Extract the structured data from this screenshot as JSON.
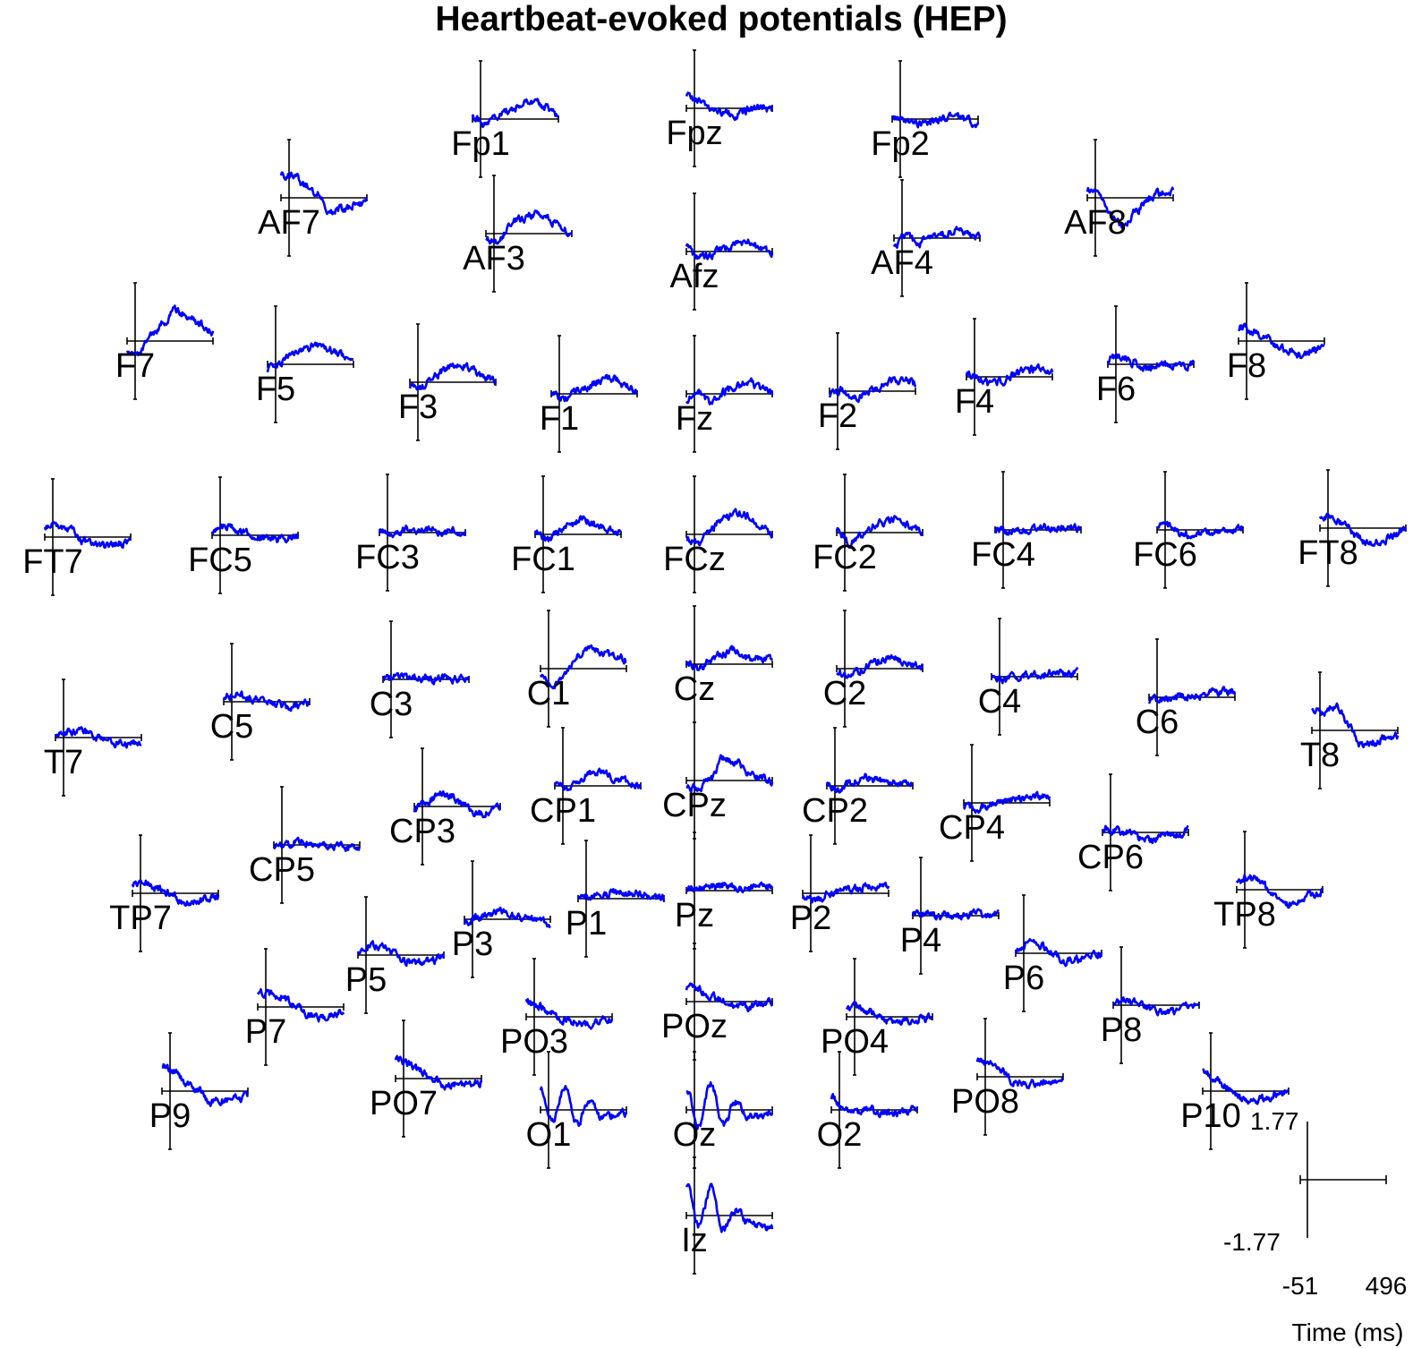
{
  "chart_data": {
    "type": "line",
    "title": "Heartbeat-evoked potentials (HEP)",
    "layout": "topographic",
    "x_range_ms": [
      -51,
      496
    ],
    "y_range_uV": [
      -1.77,
      1.77
    ],
    "scale_legend": {
      "ymax_label": "1.77",
      "ymin_label": "-1.77",
      "xmin_label": "-51",
      "xmax_label": "496",
      "xlabel": "Time (ms)"
    },
    "colors": {
      "trace": "#0000ff",
      "axes": "#000000"
    },
    "channels": [
      {
        "name": "Fp1",
        "pattern": [
          0.2,
          -0.3,
          0.1,
          0.5,
          0.9,
          1.0,
          0.6,
          0.1
        ]
      },
      {
        "name": "Fpz",
        "pattern": [
          0.6,
          0.4,
          -0.1,
          -0.2,
          -0.4,
          -0.1,
          0.1,
          -0.1
        ]
      },
      {
        "name": "Fp2",
        "pattern": [
          0.1,
          -0.2,
          -0.3,
          -0.2,
          0.0,
          0.2,
          -0.1,
          -0.3
        ]
      },
      {
        "name": "AF7",
        "pattern": [
          1.3,
          1.2,
          0.7,
          0.2,
          -0.9,
          -0.6,
          -0.4,
          -0.2
        ]
      },
      {
        "name": "AF3",
        "pattern": [
          -0.3,
          -0.5,
          0.6,
          0.9,
          1.1,
          0.8,
          0.4,
          0.0
        ]
      },
      {
        "name": "Afz",
        "pattern": [
          0.2,
          -0.4,
          -0.2,
          0.2,
          0.4,
          0.5,
          0.2,
          0.0
        ]
      },
      {
        "name": "AF4",
        "pattern": [
          -0.4,
          0.1,
          -0.3,
          0.1,
          0.3,
          0.4,
          0.2,
          0.1
        ]
      },
      {
        "name": "AF8",
        "pattern": [
          0.4,
          0.1,
          -0.9,
          -1.6,
          -0.7,
          0.0,
          0.3,
          0.4
        ]
      },
      {
        "name": "F7",
        "pattern": [
          -0.4,
          -0.6,
          0.4,
          1.1,
          1.7,
          1.4,
          0.9,
          0.5
        ]
      },
      {
        "name": "F5",
        "pattern": [
          -0.3,
          0.1,
          0.5,
          0.9,
          1.1,
          0.8,
          0.5,
          0.1
        ]
      },
      {
        "name": "F3",
        "pattern": [
          -0.2,
          -0.3,
          0.4,
          0.7,
          1.0,
          0.7,
          0.3,
          0.1
        ]
      },
      {
        "name": "F1",
        "pattern": [
          0.1,
          -0.3,
          0.1,
          0.4,
          0.7,
          0.9,
          0.5,
          0.1
        ]
      },
      {
        "name": "Fz",
        "pattern": [
          -0.3,
          0.1,
          -0.4,
          0.1,
          0.4,
          0.7,
          0.3,
          0.1
        ]
      },
      {
        "name": "F2",
        "pattern": [
          -0.2,
          0.1,
          -0.4,
          -0.1,
          0.2,
          0.6,
          0.7,
          0.4
        ]
      },
      {
        "name": "F4",
        "pattern": [
          0.2,
          0.0,
          -0.5,
          -0.2,
          0.2,
          0.4,
          0.5,
          0.3
        ]
      },
      {
        "name": "F6",
        "pattern": [
          0.3,
          0.4,
          0.1,
          -0.2,
          0.0,
          -0.1,
          -0.2,
          0.1
        ]
      },
      {
        "name": "F8",
        "pattern": [
          0.8,
          0.6,
          0.3,
          -0.2,
          -0.5,
          -0.8,
          -0.5,
          -0.2
        ]
      },
      {
        "name": "FT7",
        "pattern": [
          0.6,
          0.7,
          0.4,
          -0.2,
          -0.4,
          -0.5,
          -0.3,
          -0.3
        ]
      },
      {
        "name": "FC5",
        "pattern": [
          0.3,
          0.5,
          0.3,
          0.1,
          -0.1,
          -0.3,
          -0.2,
          -0.1
        ]
      },
      {
        "name": "FC3",
        "pattern": [
          0.1,
          -0.1,
          0.2,
          0.1,
          0.2,
          0.0,
          0.1,
          0.0
        ]
      },
      {
        "name": "FC1",
        "pattern": [
          0.1,
          -0.4,
          0.2,
          0.6,
          0.8,
          0.5,
          0.3,
          0.0
        ]
      },
      {
        "name": "FCz",
        "pattern": [
          -0.2,
          -0.5,
          0.3,
          0.9,
          1.2,
          1.0,
          0.4,
          0.0
        ]
      },
      {
        "name": "FC2",
        "pattern": [
          0.2,
          -0.6,
          -0.1,
          0.4,
          0.6,
          0.8,
          0.4,
          0.1
        ]
      },
      {
        "name": "FC4",
        "pattern": [
          0.1,
          -0.1,
          -0.1,
          0.0,
          0.1,
          0.1,
          0.2,
          0.1
        ]
      },
      {
        "name": "FC6",
        "pattern": [
          0.3,
          0.2,
          -0.2,
          -0.3,
          -0.1,
          -0.2,
          0.0,
          0.1
        ]
      },
      {
        "name": "FT8",
        "pattern": [
          0.7,
          0.5,
          0.2,
          -0.4,
          -0.9,
          -0.8,
          -0.4,
          0.0
        ]
      },
      {
        "name": "T7",
        "pattern": [
          0.2,
          0.3,
          0.4,
          0.1,
          -0.2,
          -0.3,
          -0.4,
          -0.2
        ]
      },
      {
        "name": "C5",
        "pattern": [
          0.3,
          0.4,
          0.2,
          0.1,
          -0.1,
          -0.3,
          -0.2,
          -0.1
        ]
      },
      {
        "name": "C3",
        "pattern": [
          0.1,
          0.2,
          0.1,
          0.1,
          0.0,
          0.1,
          0.0,
          0.0
        ]
      },
      {
        "name": "C1",
        "pattern": [
          -0.2,
          -1.0,
          -0.3,
          0.8,
          1.2,
          0.9,
          0.7,
          0.5
        ]
      },
      {
        "name": "Cz",
        "pattern": [
          0.1,
          -0.3,
          0.2,
          0.6,
          0.8,
          0.4,
          0.3,
          0.2
        ]
      },
      {
        "name": "C2",
        "pattern": [
          -0.1,
          -0.5,
          -0.1,
          0.4,
          0.5,
          0.5,
          0.2,
          0.1
        ]
      },
      {
        "name": "C4",
        "pattern": [
          0.1,
          -0.2,
          0.0,
          0.1,
          0.1,
          0.2,
          0.2,
          0.3
        ]
      },
      {
        "name": "C6",
        "pattern": [
          -0.2,
          -0.1,
          0.0,
          0.1,
          0.1,
          0.3,
          0.3,
          0.4
        ]
      },
      {
        "name": "T8",
        "pattern": [
          1.2,
          1.0,
          1.4,
          0.4,
          -0.9,
          -0.7,
          -0.4,
          -0.3
        ]
      },
      {
        "name": "CP3",
        "pattern": [
          -0.2,
          0.2,
          0.7,
          0.6,
          0.1,
          -0.4,
          -0.3,
          -0.1
        ]
      },
      {
        "name": "CP1",
        "pattern": [
          0.1,
          -0.2,
          0.3,
          0.8,
          0.7,
          0.4,
          0.2,
          0.0
        ]
      },
      {
        "name": "CPz",
        "pattern": [
          -0.3,
          -0.5,
          0.2,
          1.3,
          1.0,
          0.5,
          0.2,
          0.0
        ]
      },
      {
        "name": "CP2",
        "pattern": [
          0.1,
          -0.3,
          0.2,
          0.5,
          0.3,
          0.2,
          0.1,
          0.0
        ]
      },
      {
        "name": "CP4",
        "pattern": [
          -0.1,
          -0.4,
          -0.1,
          0.1,
          0.2,
          0.2,
          0.3,
          0.3
        ]
      },
      {
        "name": "CP5",
        "pattern": [
          0.0,
          0.1,
          0.2,
          0.1,
          -0.1,
          0.0,
          -0.1,
          -0.1
        ]
      },
      {
        "name": "CP6",
        "pattern": [
          0.2,
          0.1,
          0.0,
          -0.3,
          -0.4,
          -0.2,
          -0.1,
          0.1
        ]
      },
      {
        "name": "TP7",
        "pattern": [
          0.5,
          0.7,
          0.3,
          0.0,
          -0.4,
          -0.5,
          -0.3,
          -0.2
        ]
      },
      {
        "name": "P3",
        "pattern": [
          -0.2,
          0.1,
          0.3,
          0.4,
          0.2,
          0.0,
          -0.1,
          -0.2
        ]
      },
      {
        "name": "P1",
        "pattern": [
          0.1,
          0.2,
          0.1,
          0.4,
          0.3,
          0.2,
          0.1,
          0.0
        ]
      },
      {
        "name": "Pz",
        "pattern": [
          0.1,
          0.2,
          0.2,
          0.3,
          0.2,
          0.1,
          0.2,
          0.1
        ]
      },
      {
        "name": "P2",
        "pattern": [
          -0.2,
          -0.4,
          -0.1,
          0.1,
          0.2,
          0.3,
          0.4,
          0.5
        ]
      },
      {
        "name": "P4",
        "pattern": [
          0.1,
          0.1,
          0.0,
          0.1,
          0.0,
          0.1,
          0.0,
          0.1
        ]
      },
      {
        "name": "TP8",
        "pattern": [
          0.5,
          0.7,
          0.4,
          -0.4,
          -0.8,
          -0.6,
          -0.3,
          -0.1
        ]
      },
      {
        "name": "P5",
        "pattern": [
          0.3,
          0.6,
          0.4,
          0.1,
          -0.3,
          -0.4,
          -0.3,
          -0.2
        ]
      },
      {
        "name": "P6",
        "pattern": [
          0.2,
          0.5,
          0.4,
          0.0,
          -0.4,
          -0.3,
          -0.1,
          0.0
        ]
      },
      {
        "name": "P7",
        "pattern": [
          0.9,
          0.7,
          0.6,
          0.1,
          -0.4,
          -0.6,
          -0.4,
          -0.3
        ]
      },
      {
        "name": "PO3",
        "pattern": [
          0.8,
          0.6,
          0.3,
          -0.2,
          -0.3,
          -0.4,
          -0.2,
          -0.1
        ]
      },
      {
        "name": "POz",
        "pattern": [
          0.8,
          0.6,
          0.3,
          0.1,
          -0.2,
          -0.3,
          -0.1,
          0.0
        ]
      },
      {
        "name": "PO4",
        "pattern": [
          0.6,
          0.5,
          0.2,
          -0.2,
          -0.3,
          -0.2,
          -0.1,
          0.0
        ]
      },
      {
        "name": "P8",
        "pattern": [
          0.2,
          0.3,
          0.1,
          -0.2,
          -0.4,
          -0.3,
          -0.1,
          0.0
        ]
      },
      {
        "name": "P9",
        "pattern": [
          1.4,
          1.0,
          0.5,
          0.0,
          -0.6,
          -0.5,
          -0.4,
          -0.3
        ]
      },
      {
        "name": "PO7",
        "pattern": [
          1.2,
          0.8,
          0.4,
          0.0,
          -0.4,
          -0.3,
          -0.2,
          -0.2
        ]
      },
      {
        "name": "PO8",
        "pattern": [
          1.0,
          0.6,
          0.3,
          -0.3,
          -0.4,
          -0.3,
          -0.2,
          -0.1
        ]
      },
      {
        "name": "P10",
        "pattern": [
          1.1,
          0.7,
          0.2,
          -0.4,
          -0.6,
          -0.4,
          -0.2,
          -0.1
        ]
      },
      {
        "name": "O1",
        "pattern": [
          1.2,
          -0.6,
          1.3,
          -0.8,
          0.6,
          -0.4,
          -0.3,
          -0.2
        ]
      },
      {
        "name": "Oz",
        "pattern": [
          1.1,
          -0.8,
          1.5,
          -0.9,
          0.5,
          -0.3,
          -0.4,
          -0.2
        ]
      },
      {
        "name": "O2",
        "pattern": [
          0.7,
          0.1,
          -0.1,
          0.0,
          -0.1,
          -0.2,
          -0.1,
          0.0
        ]
      },
      {
        "name": "Iz",
        "pattern": [
          1.7,
          -0.6,
          1.5,
          -0.8,
          0.3,
          -0.4,
          -0.6,
          -0.8
        ]
      }
    ]
  }
}
